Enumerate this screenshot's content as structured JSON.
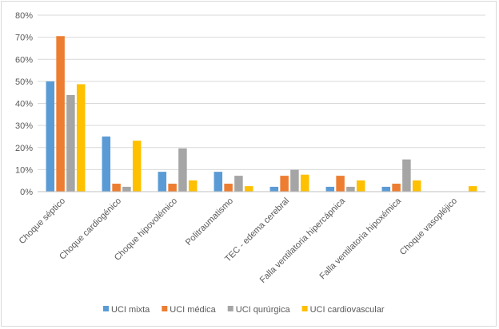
{
  "chart_data": {
    "type": "bar",
    "categories": [
      "Choque séptico",
      "Choque cardiogénico",
      "Choque hipovolémico",
      "Politraumatismo",
      "TEC - edema cerebral",
      "Falla ventilatoria hipercápnica",
      "Falla ventilatoria hipoxémica",
      "Choque vasopléjico"
    ],
    "series": [
      {
        "name": "UCI mixta",
        "color": "#5b9bd5",
        "values": [
          50,
          25,
          9,
          9,
          2.2,
          2.2,
          2.2,
          0
        ]
      },
      {
        "name": "UCI médica",
        "color": "#ed7d31",
        "values": [
          70.5,
          3.6,
          3.6,
          3.6,
          7.2,
          7.2,
          3.6,
          0
        ]
      },
      {
        "name": "UCI qurúrgica",
        "color": "#a5a5a5",
        "values": [
          43.8,
          2.2,
          19.6,
          7.2,
          9.9,
          2.2,
          14.6,
          0
        ]
      },
      {
        "name": "UCI cardiovascular",
        "color": "#ffc000",
        "values": [
          48.7,
          23.1,
          5.1,
          2.5,
          7.7,
          5.1,
          5.1,
          2.5
        ]
      }
    ],
    "yticks": [
      "0%",
      "10%",
      "20%",
      "30%",
      "40%",
      "50%",
      "60%",
      "70%",
      "80%"
    ],
    "ylim": [
      0,
      80
    ],
    "unit": "%",
    "grid": true,
    "legend_position": "bottom"
  }
}
